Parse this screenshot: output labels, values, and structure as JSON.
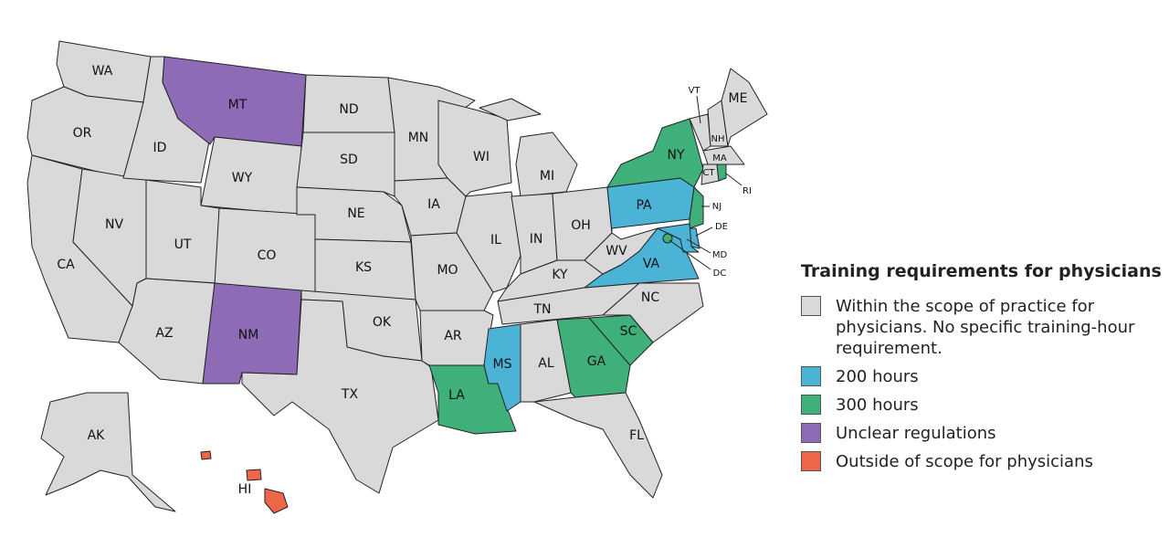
{
  "map": {
    "legend": {
      "title": "Training requirements for physicians",
      "items": [
        {
          "label": "Within the scope of practice for physicians. No specific training-hour requirement.",
          "color": "#d9d9d9"
        },
        {
          "label": "200 hours",
          "color": "#4bb3d6"
        },
        {
          "label": "300 hours",
          "color": "#3fb07a"
        },
        {
          "label": "Unclear regulations",
          "color": "#8e6bb6"
        },
        {
          "label": "Outside of scope for physicians",
          "color": "#ef6548"
        }
      ]
    },
    "states": [
      {
        "abbr": "WA",
        "category": 0
      },
      {
        "abbr": "OR",
        "category": 0
      },
      {
        "abbr": "CA",
        "category": 0
      },
      {
        "abbr": "NV",
        "category": 0
      },
      {
        "abbr": "ID",
        "category": 0
      },
      {
        "abbr": "MT",
        "category": 3
      },
      {
        "abbr": "WY",
        "category": 0
      },
      {
        "abbr": "UT",
        "category": 0
      },
      {
        "abbr": "CO",
        "category": 0
      },
      {
        "abbr": "AZ",
        "category": 0
      },
      {
        "abbr": "NM",
        "category": 3
      },
      {
        "abbr": "ND",
        "category": 0
      },
      {
        "abbr": "SD",
        "category": 0
      },
      {
        "abbr": "NE",
        "category": 0
      },
      {
        "abbr": "KS",
        "category": 0
      },
      {
        "abbr": "OK",
        "category": 0
      },
      {
        "abbr": "TX",
        "category": 0
      },
      {
        "abbr": "MN",
        "category": 0
      },
      {
        "abbr": "IA",
        "category": 0
      },
      {
        "abbr": "MO",
        "category": 0
      },
      {
        "abbr": "AR",
        "category": 0
      },
      {
        "abbr": "LA",
        "category": 2
      },
      {
        "abbr": "WI",
        "category": 0
      },
      {
        "abbr": "IL",
        "category": 0
      },
      {
        "abbr": "MI",
        "category": 0
      },
      {
        "abbr": "IN",
        "category": 0
      },
      {
        "abbr": "OH",
        "category": 0
      },
      {
        "abbr": "KY",
        "category": 0
      },
      {
        "abbr": "TN",
        "category": 0
      },
      {
        "abbr": "MS",
        "category": 1
      },
      {
        "abbr": "AL",
        "category": 0
      },
      {
        "abbr": "GA",
        "category": 2
      },
      {
        "abbr": "FL",
        "category": 0
      },
      {
        "abbr": "SC",
        "category": 2
      },
      {
        "abbr": "NC",
        "category": 0
      },
      {
        "abbr": "VA",
        "category": 1
      },
      {
        "abbr": "WV",
        "category": 0
      },
      {
        "abbr": "PA",
        "category": 1
      },
      {
        "abbr": "NY",
        "category": 2
      },
      {
        "abbr": "VT",
        "category": 0
      },
      {
        "abbr": "NH",
        "category": 0
      },
      {
        "abbr": "ME",
        "category": 0
      },
      {
        "abbr": "MA",
        "category": 0
      },
      {
        "abbr": "CT",
        "category": 0
      },
      {
        "abbr": "RI",
        "category": 2
      },
      {
        "abbr": "NJ",
        "category": 2
      },
      {
        "abbr": "DE",
        "category": 1
      },
      {
        "abbr": "MD",
        "category": 1
      },
      {
        "abbr": "DC",
        "category": 2
      },
      {
        "abbr": "AK",
        "category": 0
      },
      {
        "abbr": "HI",
        "category": 4
      }
    ]
  }
}
